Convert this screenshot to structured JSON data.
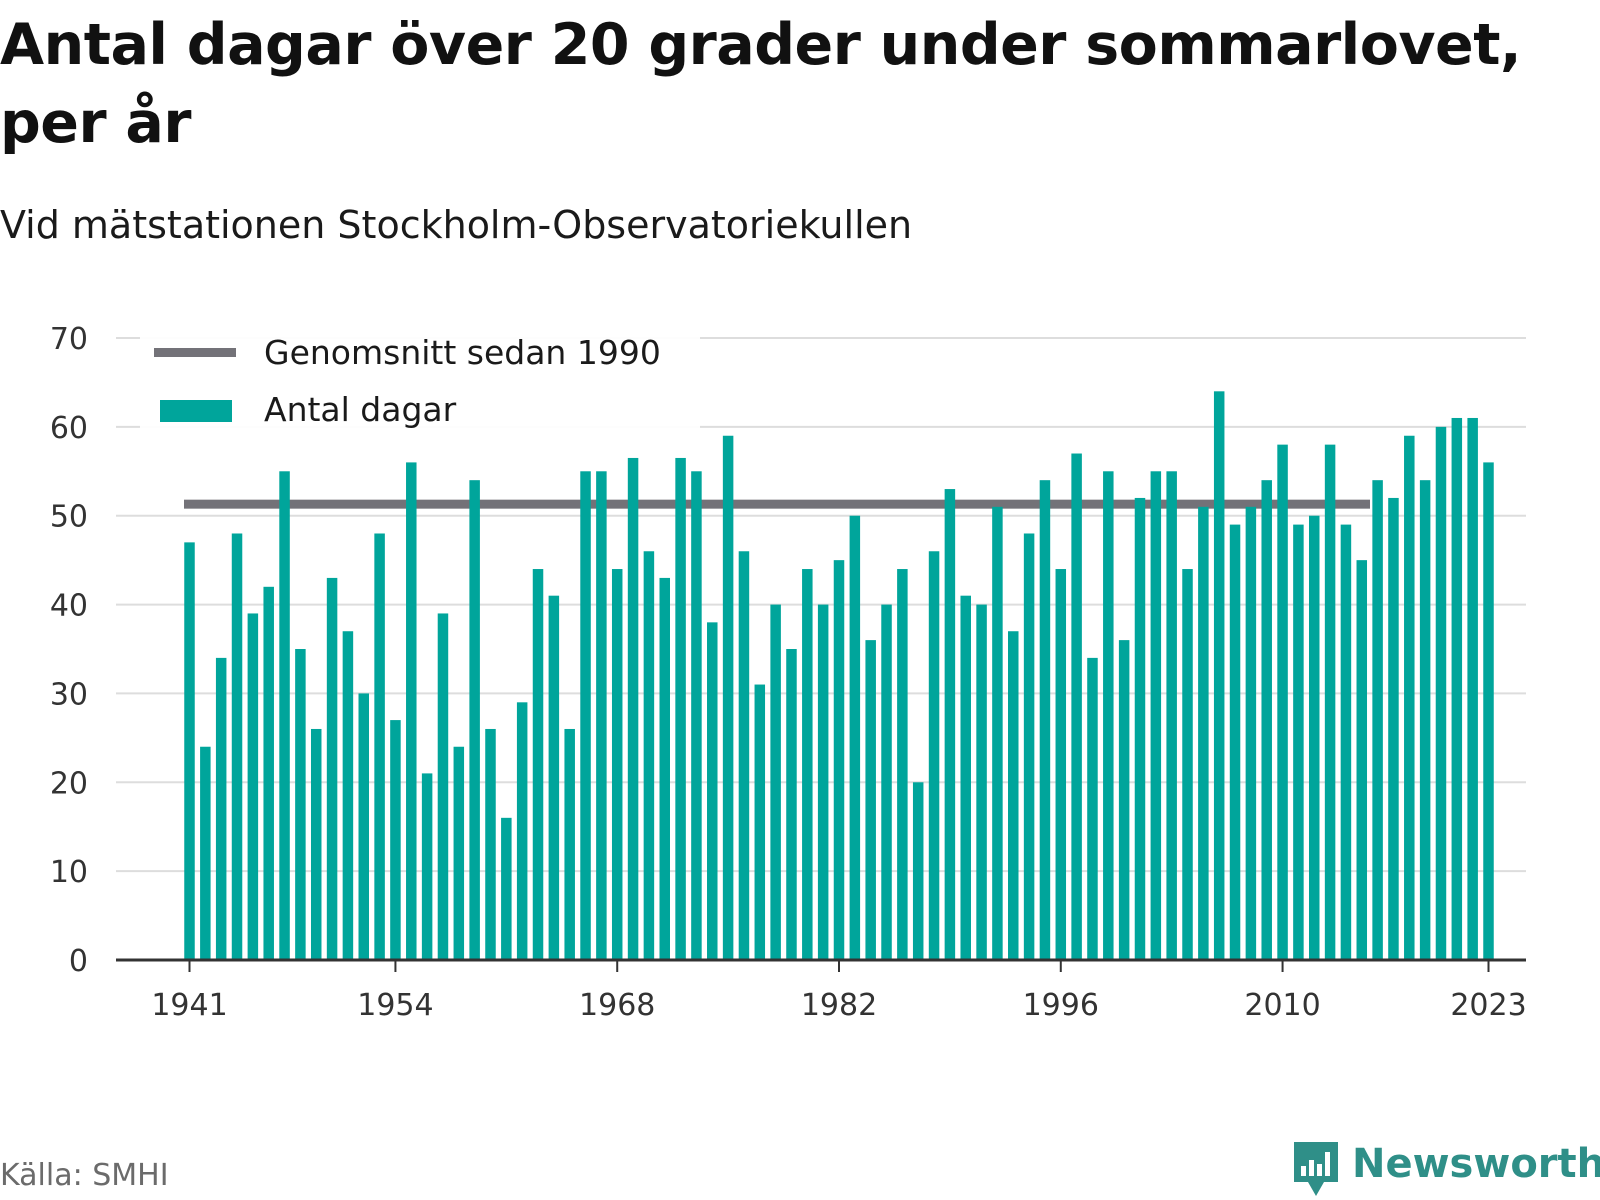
{
  "title": "Antal dagar över 20 grader under sommarlovet, per år",
  "subtitle": "Vid mätstationen Stockholm-Observatoriekullen",
  "source": "Källa: SMHI",
  "brand": {
    "name": "Newsworthy",
    "icon": "bar-chart-speech-bubble-icon",
    "color": "#2f8f88"
  },
  "chart_data": {
    "type": "bar",
    "bar_color": "#00a59b",
    "average_color": "#737278",
    "x": [
      1941,
      1942,
      1943,
      1944,
      1945,
      1946,
      1947,
      1948,
      1949,
      1950,
      1951,
      1952,
      1953,
      1954,
      1955,
      1956,
      1957,
      1958,
      1959,
      1960,
      1961,
      1962,
      1963,
      1964,
      1965,
      1966,
      1967,
      1968,
      1969,
      1970,
      1971,
      1972,
      1973,
      1974,
      1975,
      1976,
      1977,
      1978,
      1979,
      1980,
      1981,
      1982,
      1983,
      1984,
      1985,
      1986,
      1987,
      1988,
      1989,
      1990,
      1991,
      1992,
      1993,
      1994,
      1995,
      1996,
      1997,
      1998,
      1999,
      2000,
      2001,
      2002,
      2003,
      2004,
      2005,
      2006,
      2007,
      2008,
      2009,
      2010,
      2011,
      2012,
      2013,
      2014,
      2015,
      2016,
      2017,
      2018,
      2019,
      2020,
      2021,
      2022,
      2023
    ],
    "series": [
      {
        "name": "Antal dagar",
        "values": [
          47,
          24,
          34,
          48,
          39,
          42,
          55,
          35,
          26,
          43,
          37,
          30,
          48,
          27,
          56,
          21,
          39,
          24,
          54,
          26,
          16,
          29,
          44,
          41,
          26,
          55,
          55,
          44,
          56.5,
          46,
          43,
          56.5,
          55,
          38,
          59,
          46,
          31,
          40,
          35,
          44,
          40,
          45,
          50,
          36,
          40,
          44,
          20,
          46,
          53,
          41,
          40,
          51,
          37,
          48,
          54,
          44,
          57,
          34,
          55,
          36,
          52,
          55,
          55,
          44,
          51,
          64,
          49,
          51,
          54,
          58,
          49,
          50,
          58,
          49,
          45,
          54,
          52,
          59,
          54,
          60,
          61,
          61,
          56
        ]
      },
      {
        "name": "Genomsnitt sedan 1990",
        "kind": "average_line",
        "value": 51.3
      }
    ],
    "xticks": [
      1941,
      1954,
      1968,
      1982,
      1996,
      2010,
      2023
    ],
    "yticks": [
      0,
      10,
      20,
      30,
      40,
      50,
      60,
      70
    ],
    "xlabel": "",
    "ylabel": "",
    "ylim": [
      0,
      70
    ],
    "grid": "horizontal",
    "legend_position": "top-left"
  }
}
